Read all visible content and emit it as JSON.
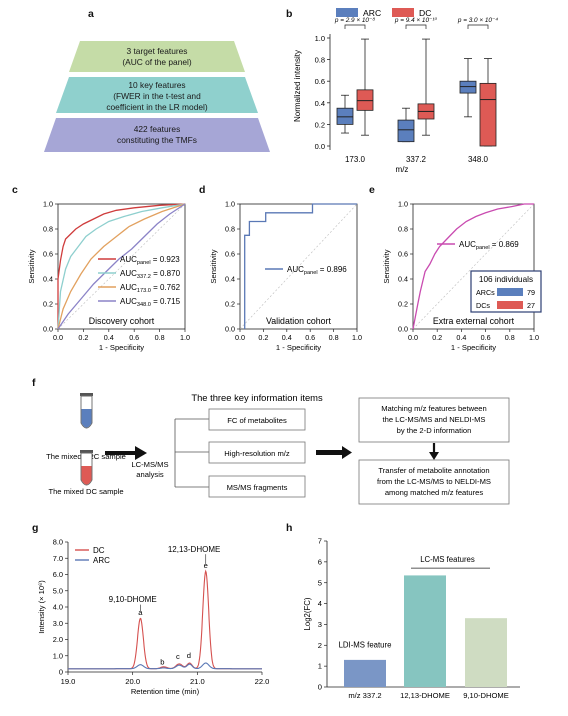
{
  "panels": {
    "a": "a",
    "b": "b",
    "c": "c",
    "d": "d",
    "e": "e",
    "f": "f",
    "g": "g",
    "h": "h"
  },
  "funnel": {
    "levels": [
      {
        "lines": [
          "3 target features",
          "(AUC of the panel)"
        ],
        "color": "#c5dca7"
      },
      {
        "lines": [
          "10 key features",
          "(FWER in the t-test and",
          "coefficient in the LR model)"
        ],
        "color": "#8fd0cd"
      },
      {
        "lines": [
          "422 features",
          "constituting the TMFs"
        ],
        "color": "#a6a6d6"
      }
    ]
  },
  "chart_data": [
    {
      "id": "b",
      "type": "box",
      "ylabel": "Normalized intensity",
      "xlabel": "m/z",
      "categories": [
        "173.0",
        "337.2",
        "348.0"
      ],
      "ylim": [
        0,
        1.0
      ],
      "yticks": [
        "0.0",
        "0.2",
        "0.4",
        "0.6",
        "0.8",
        "1.0"
      ],
      "legend": [
        {
          "name": "ARC",
          "color": "#5b7fbd"
        },
        {
          "name": "DC",
          "color": "#de5a55"
        }
      ],
      "pvalues": [
        "p = 2.9 × 10⁻⁸",
        "p = 9.4 × 10⁻¹⁰",
        "p = 3.0 × 10⁻⁴"
      ],
      "series": [
        {
          "name": "ARC",
          "boxes": [
            {
              "min": 0.12,
              "q1": 0.2,
              "median": 0.27,
              "q3": 0.35,
              "max": 0.47
            },
            {
              "min": 0.04,
              "q1": 0.04,
              "median": 0.15,
              "q3": 0.24,
              "max": 0.35
            },
            {
              "min": 0.27,
              "q1": 0.49,
              "median": 0.55,
              "q3": 0.6,
              "max": 0.81
            }
          ]
        },
        {
          "name": "DC",
          "boxes": [
            {
              "min": 0.1,
              "q1": 0.33,
              "median": 0.42,
              "q3": 0.52,
              "max": 0.99
            },
            {
              "min": 0.1,
              "q1": 0.25,
              "median": 0.32,
              "q3": 0.39,
              "max": 0.99
            },
            {
              "min": 0.0,
              "q1": 0.0,
              "median": 0.43,
              "q3": 0.58,
              "max": 0.81
            }
          ]
        }
      ]
    },
    {
      "id": "c",
      "type": "line",
      "xlabel": "1 - Specificity",
      "ylabel": "Sensitivity",
      "annotation": "Discovery cohort",
      "ticks": [
        "0.0",
        "0.2",
        "0.4",
        "0.6",
        "0.8",
        "1.0"
      ],
      "series": [
        {
          "label": "AUC",
          "sub": "panel",
          "auc": "= 0.923",
          "color": "#cf3c3c",
          "points": [
            [
              0,
              0
            ],
            [
              0,
              0.4
            ],
            [
              0.02,
              0.55
            ],
            [
              0.04,
              0.66
            ],
            [
              0.06,
              0.72
            ],
            [
              0.1,
              0.76
            ],
            [
              0.14,
              0.8
            ],
            [
              0.2,
              0.84
            ],
            [
              0.28,
              0.88
            ],
            [
              0.36,
              0.92
            ],
            [
              0.46,
              0.95
            ],
            [
              0.6,
              0.97
            ],
            [
              0.8,
              0.99
            ],
            [
              1,
              1
            ]
          ]
        },
        {
          "label": "AUC",
          "sub": "337.2",
          "auc": "= 0.870",
          "color": "#8ecfce",
          "points": [
            [
              0,
              0
            ],
            [
              0.02,
              0.3
            ],
            [
              0.06,
              0.48
            ],
            [
              0.1,
              0.58
            ],
            [
              0.16,
              0.66
            ],
            [
              0.22,
              0.74
            ],
            [
              0.3,
              0.8
            ],
            [
              0.4,
              0.86
            ],
            [
              0.52,
              0.9
            ],
            [
              0.66,
              0.94
            ],
            [
              0.82,
              0.97
            ],
            [
              1,
              1
            ]
          ]
        },
        {
          "label": "AUC",
          "sub": "173.0",
          "auc": "= 0.762",
          "color": "#e2a15f",
          "points": [
            [
              0,
              0
            ],
            [
              0.04,
              0.16
            ],
            [
              0.1,
              0.3
            ],
            [
              0.18,
              0.44
            ],
            [
              0.26,
              0.56
            ],
            [
              0.36,
              0.66
            ],
            [
              0.46,
              0.74
            ],
            [
              0.56,
              0.82
            ],
            [
              0.68,
              0.88
            ],
            [
              0.82,
              0.94
            ],
            [
              1,
              1
            ]
          ]
        },
        {
          "label": "AUC",
          "sub": "348.0",
          "auc": "= 0.715",
          "color": "#8b83c7",
          "points": [
            [
              0,
              0
            ],
            [
              0.08,
              0.12
            ],
            [
              0.18,
              0.24
            ],
            [
              0.28,
              0.36
            ],
            [
              0.38,
              0.46
            ],
            [
              0.48,
              0.56
            ],
            [
              0.58,
              0.64
            ],
            [
              0.68,
              0.74
            ],
            [
              0.78,
              0.84
            ],
            [
              0.88,
              0.92
            ],
            [
              1,
              1
            ]
          ]
        }
      ]
    },
    {
      "id": "d",
      "type": "line",
      "xlabel": "1 - Specificity",
      "ylabel": "Sensitivity",
      "annotation": "Validation cohort",
      "ticks": [
        "0.0",
        "0.2",
        "0.4",
        "0.6",
        "0.8",
        "1.0"
      ],
      "series": [
        {
          "label": "AUC",
          "sub": "panel",
          "auc": "= 0.896",
          "color": "#5a78b5",
          "points": [
            [
              0.04,
              0
            ],
            [
              0.04,
              0.75
            ],
            [
              0.08,
              0.75
            ],
            [
              0.08,
              0.86
            ],
            [
              0.22,
              0.86
            ],
            [
              0.22,
              0.93
            ],
            [
              0.62,
              0.93
            ],
            [
              0.62,
              1.0
            ],
            [
              1,
              1
            ]
          ]
        }
      ]
    },
    {
      "id": "e",
      "type": "line",
      "xlabel": "1 - Specificity",
      "ylabel": "Sensitivity",
      "annotation": "Extra external cohort",
      "ticks": [
        "0.0",
        "0.2",
        "0.4",
        "0.6",
        "0.8",
        "1.0"
      ],
      "series": [
        {
          "label": "AUC",
          "sub": "panel",
          "auc": "= 0.869",
          "color": "#c94bb0",
          "points": [
            [
              0,
              0
            ],
            [
              0.02,
              0.1
            ],
            [
              0.04,
              0.2
            ],
            [
              0.06,
              0.3
            ],
            [
              0.08,
              0.38
            ],
            [
              0.1,
              0.46
            ],
            [
              0.14,
              0.52
            ],
            [
              0.18,
              0.6
            ],
            [
              0.22,
              0.66
            ],
            [
              0.26,
              0.7
            ],
            [
              0.3,
              0.74
            ],
            [
              0.36,
              0.8
            ],
            [
              0.44,
              0.86
            ],
            [
              0.52,
              0.9
            ],
            [
              0.6,
              0.93
            ],
            [
              0.7,
              0.96
            ],
            [
              0.82,
              0.98
            ],
            [
              0.92,
              1.0
            ],
            [
              1,
              1
            ]
          ]
        }
      ],
      "inset": {
        "title": "106 individuals",
        "rows": [
          {
            "label": "ARCs",
            "value": "79",
            "color": "#5b7fbd"
          },
          {
            "label": "DCs",
            "value": "27",
            "color": "#de5a55"
          }
        ]
      }
    },
    {
      "id": "g",
      "type": "line",
      "xlabel": "Retention time (min)",
      "ylabel": "Intensity (× 10⁶)",
      "xlim": [
        19.0,
        22.0
      ],
      "ylim": [
        0,
        8.0
      ],
      "xticks": [
        "19.0",
        "20.0",
        "21.0",
        "22.0"
      ],
      "yticks": [
        "0",
        "1.0",
        "2.0",
        "3.0",
        "4.0",
        "5.0",
        "6.0",
        "7.0",
        "8.0"
      ],
      "series": [
        {
          "name": "DC",
          "color": "#d5514f",
          "peaks": [
            {
              "center": 20.12,
              "height": 3.1,
              "width": 0.045
            },
            {
              "center": 20.48,
              "height": 0.12,
              "width": 0.05
            },
            {
              "center": 20.72,
              "height": 0.3,
              "width": 0.05
            },
            {
              "center": 20.88,
              "height": 0.35,
              "width": 0.04
            },
            {
              "center": 21.13,
              "height": 6.0,
              "width": 0.045
            }
          ],
          "baseline": 0.2
        },
        {
          "name": "ARC",
          "color": "#5a78b5",
          "peaks": [
            {
              "center": 20.12,
              "height": 0.25,
              "width": 0.05
            },
            {
              "center": 20.48,
              "height": 0.05,
              "width": 0.05
            },
            {
              "center": 20.72,
              "height": 0.22,
              "width": 0.05
            },
            {
              "center": 20.88,
              "height": 0.28,
              "width": 0.04
            },
            {
              "center": 21.13,
              "height": 0.35,
              "width": 0.05
            }
          ],
          "baseline": 0.2
        }
      ],
      "peak_labels": [
        {
          "text": "a",
          "x": 20.12,
          "y": 3.5
        },
        {
          "text": "b",
          "x": 20.46,
          "y": 0.45
        },
        {
          "text": "c",
          "x": 20.7,
          "y": 0.8
        },
        {
          "text": "d",
          "x": 20.87,
          "y": 0.85
        },
        {
          "text": "e",
          "x": 21.13,
          "y": 6.4
        }
      ],
      "compound_labels": [
        {
          "text": "9,10-DHOME",
          "x": 20.0,
          "y": 4.3
        },
        {
          "text": "12,13-DHOME",
          "x": 20.95,
          "y": 7.4
        }
      ]
    },
    {
      "id": "h",
      "type": "bar",
      "ylabel": "Log2(FC)",
      "categories": [
        "m/z 337.2",
        "12,13-DHOME",
        "9,10-DHOME"
      ],
      "values": [
        1.3,
        5.35,
        3.3
      ],
      "colors": [
        "#7a96c6",
        "#86c5c0",
        "#cfdcc2"
      ],
      "ylim": [
        0,
        7
      ],
      "yticks": [
        "0",
        "1",
        "2",
        "3",
        "4",
        "5",
        "6",
        "7"
      ],
      "annotations": [
        {
          "text": "LDI-MS feature",
          "x": 0,
          "y": 1.9
        },
        {
          "text": "LC-MS features",
          "x": 1.5,
          "y": 6.0
        }
      ]
    }
  ],
  "workflow": {
    "title": "The three key information items",
    "arc_sample": "The mixed ARC sample",
    "dc_sample": "The mixed DC sample",
    "method": [
      "LC-MS/MS",
      "analysis"
    ],
    "items": [
      "FC of metabolites",
      "High-resolution m/z",
      "MS/MS fragments"
    ],
    "step1": [
      "Matching m/z features between",
      "the LC-MS/MS and NELDI-MS",
      "by the 2-D information"
    ],
    "step2": [
      "Transfer of metabolite annotation",
      "from the LC-MS/MS to NELDI-MS",
      "among matched m/z features"
    ],
    "arc_color": "#5b7fbd",
    "dc_color": "#de5a55"
  }
}
